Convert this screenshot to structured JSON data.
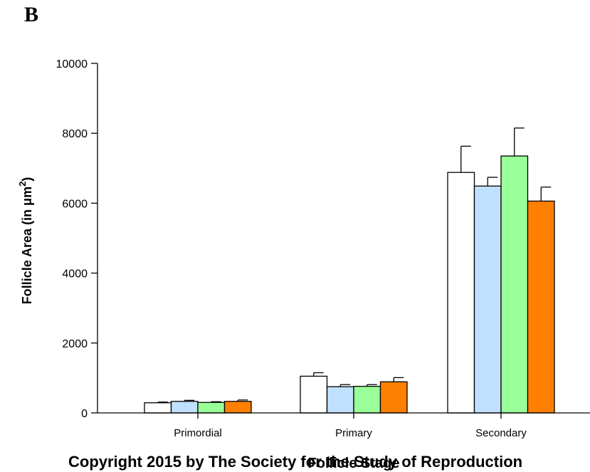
{
  "panel_label": "B",
  "copyright": "Copyright 2015 by The Society for the Study of Reproduction",
  "chart_data": {
    "type": "bar",
    "title": "",
    "xlabel": "Follicle Stage",
    "ylabel_main": "Follicle Area (in μm",
    "ylabel_sup": "2",
    "ylabel_close": ")",
    "ylim": [
      0,
      10000
    ],
    "yticks": [
      0,
      2000,
      4000,
      6000,
      8000,
      10000
    ],
    "grid": false,
    "categories": [
      "Primordial",
      "Primary",
      "Secondary"
    ],
    "series": [
      {
        "color": "#ffffff",
        "values": [
          290,
          1050,
          6880
        ],
        "errors": [
          20,
          100,
          750
        ]
      },
      {
        "color": "#bfe0ff",
        "values": [
          330,
          750,
          6490
        ],
        "errors": [
          30,
          60,
          250
        ]
      },
      {
        "color": "#99ff99",
        "values": [
          300,
          760,
          7350
        ],
        "errors": [
          20,
          50,
          800
        ]
      },
      {
        "color": "#ff8000",
        "values": [
          330,
          890,
          6060
        ],
        "errors": [
          40,
          120,
          400
        ]
      }
    ]
  }
}
